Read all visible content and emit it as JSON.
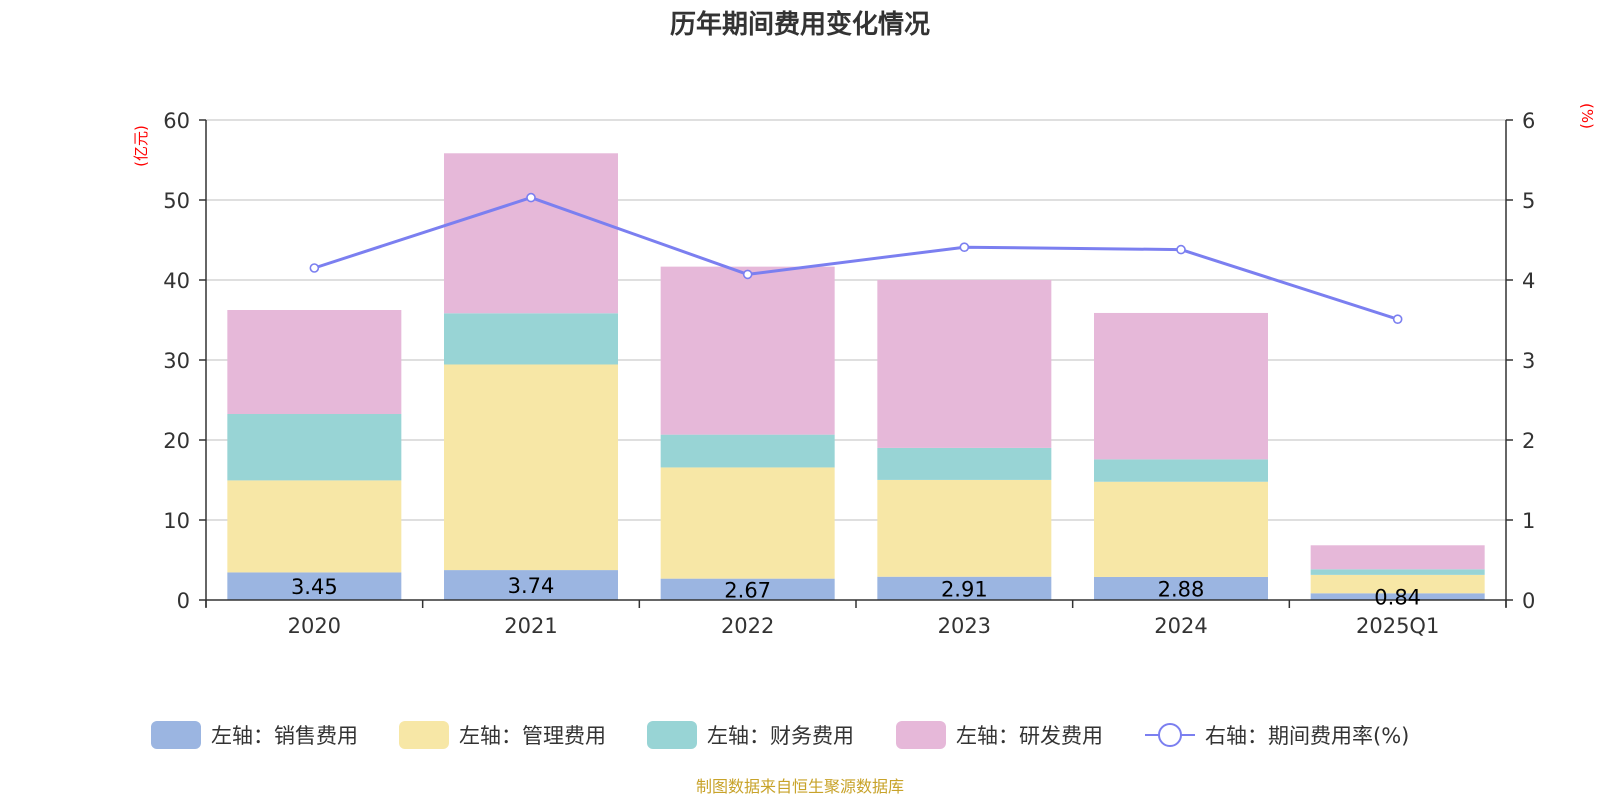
{
  "colors": {
    "sales": "#9bb5e1",
    "admin": "#f7e7a6",
    "finance": "#98d4d5",
    "rnd": "#e6b8d9",
    "rate": "#7b7ff0",
    "grid": "#cccccc",
    "axis": "#333333",
    "unit": "#ff0000",
    "source": "#c8a32a"
  },
  "chart_data": {
    "type": "bar",
    "stacked": true,
    "title": "历年期间费用变化情况",
    "left_axis_unit": "(亿元)",
    "right_axis_unit": "(%)",
    "categories": [
      "2020",
      "2021",
      "2022",
      "2023",
      "2024",
      "2025Q1"
    ],
    "left_ylim": [
      0,
      60
    ],
    "left_ticks": [
      "0",
      "10",
      "20",
      "30",
      "40",
      "50",
      "60"
    ],
    "right_ylim": [
      0,
      6
    ],
    "right_ticks": [
      "0",
      "1",
      "2",
      "3",
      "4",
      "5",
      "6"
    ],
    "series": [
      {
        "name": "左轴：销售费用",
        "key": "sales",
        "values": [
          3.45,
          3.74,
          2.67,
          2.91,
          2.88,
          0.84
        ]
      },
      {
        "name": "左轴：管理费用",
        "key": "admin",
        "values": [
          11.5,
          25.7,
          13.9,
          12.1,
          11.9,
          2.3
        ]
      },
      {
        "name": "左轴：财务费用",
        "key": "finance",
        "values": [
          8.3,
          6.4,
          4.1,
          4.0,
          2.8,
          0.7
        ]
      },
      {
        "name": "左轴：研发费用",
        "key": "rnd",
        "values": [
          13.0,
          20.0,
          21.0,
          21.0,
          18.3,
          3.0
        ]
      }
    ],
    "data_labels": [
      "3.45",
      "3.74",
      "2.67",
      "2.91",
      "2.88",
      "0.84"
    ],
    "line_series": {
      "name": "右轴：期间费用率(%)",
      "axis": "right",
      "values": [
        4.15,
        5.03,
        4.07,
        4.41,
        4.38,
        3.51
      ]
    }
  },
  "source_note": "制图数据来自恒生聚源数据库"
}
